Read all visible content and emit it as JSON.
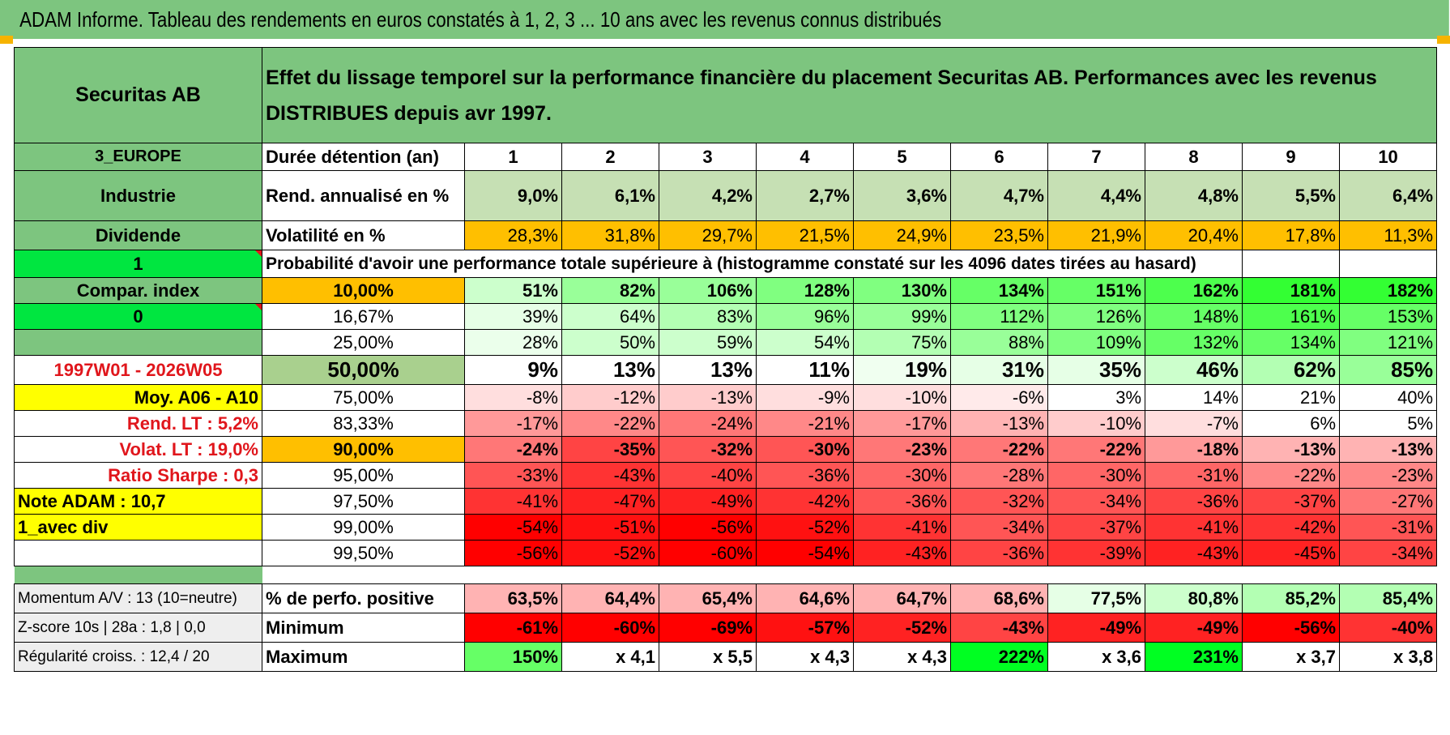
{
  "title": "ADAM Informe. Tableau des rendements en euros constatés à 1, 2, 3 ... 10 ans avec les revenus connus distribués",
  "header": {
    "name": "Securitas AB",
    "description": "Effet du lissage temporel sur la performance financière du placement Securitas AB. Performances avec les revenus DISTRIBUES depuis avr 1997."
  },
  "side": {
    "region": "3_EUROPE",
    "sector": "Industrie",
    "type": "Dividende",
    "value_1": "1",
    "compar": "Compar. index",
    "value_0": "0",
    "period": "1997W01 - 2026W05",
    "moy": "Moy. A06 - A10",
    "rend_lt": "Rend. LT :   5,2%",
    "volat_lt": "Volat. LT :   19,0%",
    "sharpe": "Ratio Sharpe :    0,3",
    "note": "Note ADAM : 10,7",
    "avec_div": "1_avec div"
  },
  "labels": {
    "duree": "Durée détention (an)",
    "rend": "Rend. annualisé en %",
    "volat": "Volatilité en %",
    "proba": "Probabilité d'avoir une performance totale supérieure à (histogramme constaté sur les 4096 dates tirées au hasard)",
    "pos": "% de perfo. positive",
    "min": "Minimum",
    "max": "Maximum",
    "momentum": "Momentum A/V : 13 (10=neutre)",
    "zscore": "Z-score 10s | 28a : 1,8 | 0,0",
    "regul": "Régularité croiss. : 12,4 / 20"
  },
  "years": [
    "1",
    "2",
    "3",
    "4",
    "5",
    "6",
    "7",
    "8",
    "9",
    "10"
  ],
  "rend": [
    "9,0%",
    "6,1%",
    "4,2%",
    "2,7%",
    "3,6%",
    "4,7%",
    "4,4%",
    "4,8%",
    "5,5%",
    "6,4%"
  ],
  "volat": [
    "28,3%",
    "31,8%",
    "29,7%",
    "21,5%",
    "24,9%",
    "23,5%",
    "21,9%",
    "20,4%",
    "17,8%",
    "11,3%"
  ],
  "quantiles": [
    {
      "p": "10,00%",
      "v": [
        "51%",
        "82%",
        "106%",
        "128%",
        "130%",
        "134%",
        "151%",
        "162%",
        "181%",
        "182%"
      ]
    },
    {
      "p": "16,67%",
      "v": [
        "39%",
        "64%",
        "83%",
        "96%",
        "99%",
        "112%",
        "126%",
        "148%",
        "161%",
        "153%"
      ]
    },
    {
      "p": "25,00%",
      "v": [
        "28%",
        "50%",
        "59%",
        "54%",
        "75%",
        "88%",
        "109%",
        "132%",
        "134%",
        "121%"
      ]
    },
    {
      "p": "50,00%",
      "v": [
        "9%",
        "13%",
        "13%",
        "11%",
        "19%",
        "31%",
        "35%",
        "46%",
        "62%",
        "85%"
      ]
    },
    {
      "p": "75,00%",
      "v": [
        "-8%",
        "-12%",
        "-13%",
        "-9%",
        "-10%",
        "-6%",
        "3%",
        "14%",
        "21%",
        "40%"
      ]
    },
    {
      "p": "83,33%",
      "v": [
        "-17%",
        "-22%",
        "-24%",
        "-21%",
        "-17%",
        "-13%",
        "-10%",
        "-7%",
        "6%",
        "5%"
      ]
    },
    {
      "p": "90,00%",
      "v": [
        "-24%",
        "-35%",
        "-32%",
        "-30%",
        "-23%",
        "-22%",
        "-22%",
        "-18%",
        "-13%",
        "-13%"
      ]
    },
    {
      "p": "95,00%",
      "v": [
        "-33%",
        "-43%",
        "-40%",
        "-36%",
        "-30%",
        "-28%",
        "-30%",
        "-31%",
        "-22%",
        "-23%"
      ]
    },
    {
      "p": "97,50%",
      "v": [
        "-41%",
        "-47%",
        "-49%",
        "-42%",
        "-36%",
        "-32%",
        "-34%",
        "-36%",
        "-37%",
        "-27%"
      ]
    },
    {
      "p": "99,00%",
      "v": [
        "-54%",
        "-51%",
        "-56%",
        "-52%",
        "-41%",
        "-34%",
        "-37%",
        "-41%",
        "-42%",
        "-31%"
      ]
    },
    {
      "p": "99,50%",
      "v": [
        "-56%",
        "-52%",
        "-60%",
        "-54%",
        "-43%",
        "-36%",
        "-39%",
        "-43%",
        "-45%",
        "-34%"
      ]
    }
  ],
  "pos": [
    "63,5%",
    "64,4%",
    "65,4%",
    "64,6%",
    "64,7%",
    "68,6%",
    "77,5%",
    "80,8%",
    "85,2%",
    "85,4%"
  ],
  "min": [
    "-61%",
    "-60%",
    "-69%",
    "-57%",
    "-52%",
    "-43%",
    "-49%",
    "-49%",
    "-56%",
    "-40%"
  ],
  "max": [
    "150%",
    "x 4,1",
    "x 5,5",
    "x 4,3",
    "x 4,3",
    "222%",
    "x 3,6",
    "231%",
    "x 3,7",
    "x 3,8"
  ],
  "colors": {
    "rend": [
      "#c6e0b4",
      "#c6e0b4",
      "#c6e0b4",
      "#c6e0b4",
      "#c6e0b4",
      "#c6e0b4",
      "#c6e0b4",
      "#c6e0b4",
      "#c6e0b4",
      "#c6e0b4"
    ],
    "volat": "#ffbf00",
    "quantiles": [
      [
        "#ccffcc",
        "#99ff99",
        "#99ff99",
        "#80ff80",
        "#80ff80",
        "#66ff66",
        "#66ff66",
        "#4dff4d",
        "#33ff33",
        "#33ff33"
      ],
      [
        "#e6ffe6",
        "#ccffcc",
        "#b3ffb3",
        "#99ff99",
        "#99ff99",
        "#80ff80",
        "#80ff80",
        "#66ff66",
        "#4dff4d",
        "#66ff66"
      ],
      [
        "#ebffeb",
        "#ccffcc",
        "#ccffcc",
        "#ccffcc",
        "#b3ffb3",
        "#99ff99",
        "#80ff80",
        "#66ff66",
        "#66ff66",
        "#80ff80"
      ],
      [
        "#ffffff",
        "#ffffff",
        "#ffffff",
        "#ffffff",
        "#f0fff0",
        "#e6ffe6",
        "#e6ffe6",
        "#ccffcc",
        "#b3ffb3",
        "#99ff99"
      ],
      [
        "#ffdede",
        "#ffcccc",
        "#ffcccc",
        "#ffdede",
        "#ffdede",
        "#ffeaea",
        "#ffffff",
        "#ffffff",
        "#ffffff",
        "#ffffff"
      ],
      [
        "#ff9999",
        "#ff8888",
        "#ff7777",
        "#ff8888",
        "#ff9999",
        "#ffb3b3",
        "#ffcccc",
        "#ffdede",
        "#ffffff",
        "#ffffff"
      ],
      [
        "#ff7777",
        "#ff4444",
        "#ff5555",
        "#ff5555",
        "#ff7777",
        "#ff7777",
        "#ff7777",
        "#ff9999",
        "#ffb3b3",
        "#ffb3b3"
      ],
      [
        "#ff5555",
        "#ff3333",
        "#ff4444",
        "#ff5555",
        "#ff6666",
        "#ff7777",
        "#ff6666",
        "#ff6666",
        "#ff8888",
        "#ff8888"
      ],
      [
        "#ff3333",
        "#ff2222",
        "#ff2222",
        "#ff3333",
        "#ff5555",
        "#ff5555",
        "#ff5555",
        "#ff4444",
        "#ff4444",
        "#ff7777"
      ],
      [
        "#ff0000",
        "#ff1111",
        "#ff0000",
        "#ff1111",
        "#ff3333",
        "#ff5555",
        "#ff4444",
        "#ff3333",
        "#ff3333",
        "#ff5555"
      ],
      [
        "#ff0000",
        "#ff1111",
        "#ff0000",
        "#ff0000",
        "#ff2222",
        "#ff4444",
        "#ff3333",
        "#ff2222",
        "#ff2222",
        "#ff4444"
      ]
    ],
    "pos": [
      "#ffb3b3",
      "#ffb3b3",
      "#ffb3b3",
      "#ffb3b3",
      "#ffb3b3",
      "#ffb3b3",
      "#e6ffe6",
      "#ccffcc",
      "#b3ffb3",
      "#b3ffb3"
    ],
    "min": [
      "#ff0000",
      "#ff0000",
      "#ff0000",
      "#ff1111",
      "#ff2222",
      "#ff4444",
      "#ff2222",
      "#ff2222",
      "#ff0000",
      "#ff3333"
    ],
    "max": [
      "#66ff66",
      "#ffffff",
      "#ffffff",
      "#ffffff",
      "#ffffff",
      "#00ff22",
      "#ffffff",
      "#00ff22",
      "#ffffff",
      "#ffffff"
    ]
  }
}
